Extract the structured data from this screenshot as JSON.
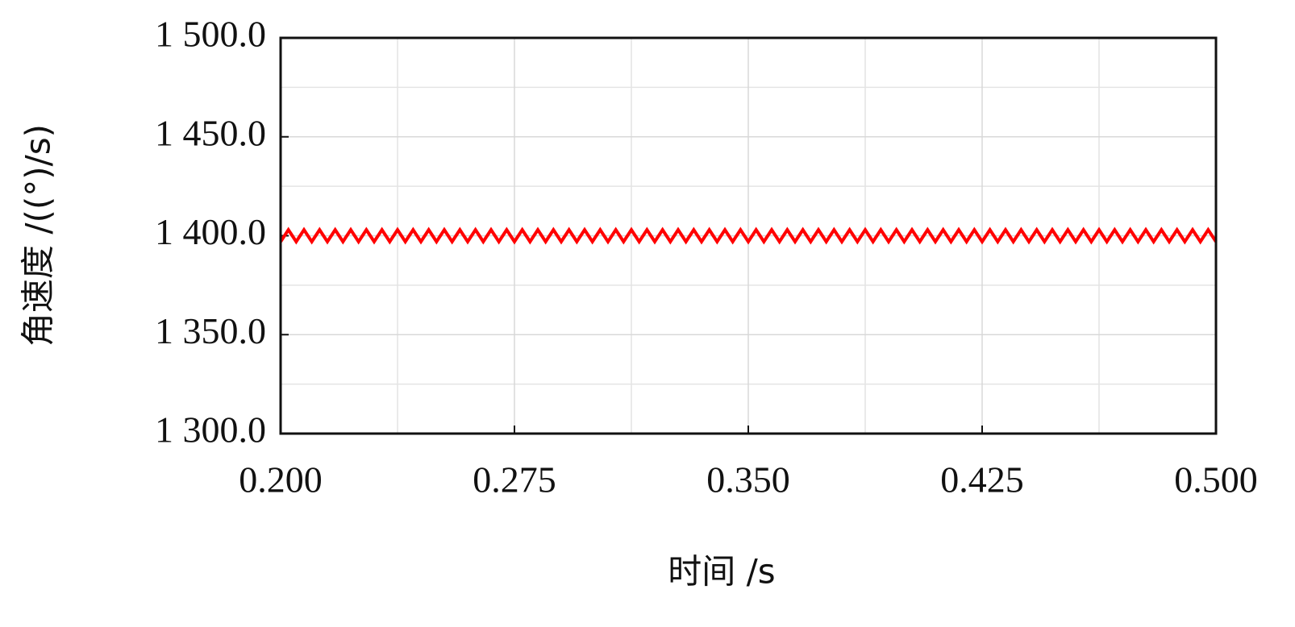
{
  "chart_data": {
    "type": "line",
    "xlabel": "时间 /s",
    "ylabel": "角速度 /((°)/s)",
    "color": "#ff0000",
    "grid": true,
    "xlim": [
      0.2,
      0.5
    ],
    "ylim": [
      1300,
      1500
    ],
    "xticks": [
      {
        "value": 0.2,
        "label": "0.200"
      },
      {
        "value": 0.275,
        "label": "0.275"
      },
      {
        "value": 0.35,
        "label": "0.350"
      },
      {
        "value": 0.425,
        "label": "0.425"
      },
      {
        "value": 0.5,
        "label": "0.500"
      }
    ],
    "yticks": [
      {
        "value": 1300,
        "label": "1 300.0"
      },
      {
        "value": 1350,
        "label": "1 350.0"
      },
      {
        "value": 1400,
        "label": "1 400.0"
      },
      {
        "value": 1450,
        "label": "1 450.0"
      },
      {
        "value": 1500,
        "label": "1 500.0"
      }
    ],
    "x": [
      0.2,
      0.2025,
      0.205,
      0.2075,
      0.21,
      0.2125,
      0.215,
      0.2175,
      0.22,
      0.2225,
      0.225,
      0.2275,
      0.23,
      0.2325,
      0.235,
      0.2375,
      0.24,
      0.2425,
      0.245,
      0.2475,
      0.25,
      0.2525,
      0.255,
      0.2575,
      0.26,
      0.2625,
      0.265,
      0.2675,
      0.27,
      0.2725,
      0.275,
      0.2775,
      0.28,
      0.2825,
      0.285,
      0.2875,
      0.29,
      0.2925,
      0.295,
      0.2975,
      0.3,
      0.3025,
      0.305,
      0.3075,
      0.31,
      0.3125,
      0.315,
      0.3175,
      0.32,
      0.3225,
      0.325,
      0.3275,
      0.33,
      0.3325,
      0.335,
      0.3375,
      0.34,
      0.3425,
      0.345,
      0.3475,
      0.35,
      0.3525,
      0.355,
      0.3575,
      0.36,
      0.3625,
      0.365,
      0.3675,
      0.37,
      0.3725,
      0.375,
      0.3775,
      0.38,
      0.3825,
      0.385,
      0.3875,
      0.39,
      0.3925,
      0.395,
      0.3975,
      0.4,
      0.4025,
      0.405,
      0.4075,
      0.41,
      0.4125,
      0.415,
      0.4175,
      0.42,
      0.4225,
      0.425,
      0.4275,
      0.43,
      0.4325,
      0.435,
      0.4375,
      0.44,
      0.4425,
      0.445,
      0.4475,
      0.45,
      0.4525,
      0.455,
      0.4575,
      0.46,
      0.4625,
      0.465,
      0.4675,
      0.47,
      0.4725,
      0.475,
      0.4775,
      0.48,
      0.4825,
      0.485,
      0.4875,
      0.49,
      0.4925,
      0.495,
      0.4975,
      0.5
    ],
    "values": [
      1397,
      1403,
      1397,
      1403,
      1397,
      1403,
      1397,
      1403,
      1397,
      1403,
      1397,
      1403,
      1397,
      1403,
      1397,
      1403,
      1397,
      1403,
      1397,
      1403,
      1397,
      1403,
      1397,
      1403,
      1397,
      1403,
      1397,
      1403,
      1397,
      1403,
      1397,
      1403,
      1397,
      1403,
      1397,
      1403,
      1397,
      1403,
      1397,
      1403,
      1397,
      1403,
      1397,
      1403,
      1397,
      1403,
      1397,
      1403,
      1397,
      1403,
      1397,
      1403,
      1397,
      1403,
      1397,
      1403,
      1397,
      1403,
      1397,
      1403,
      1397,
      1403,
      1397,
      1403,
      1397,
      1403,
      1397,
      1403,
      1397,
      1403,
      1397,
      1403,
      1397,
      1403,
      1397,
      1403,
      1397,
      1403,
      1397,
      1403,
      1397,
      1403,
      1397,
      1403,
      1397,
      1403,
      1397,
      1403,
      1397,
      1403,
      1397,
      1403,
      1397,
      1403,
      1397,
      1403,
      1397,
      1403,
      1397,
      1403,
      1397,
      1403,
      1397,
      1403,
      1397,
      1403,
      1397,
      1403,
      1397,
      1403,
      1397,
      1403,
      1397,
      1403,
      1397,
      1403,
      1397,
      1403,
      1397,
      1403,
      1397
    ]
  }
}
